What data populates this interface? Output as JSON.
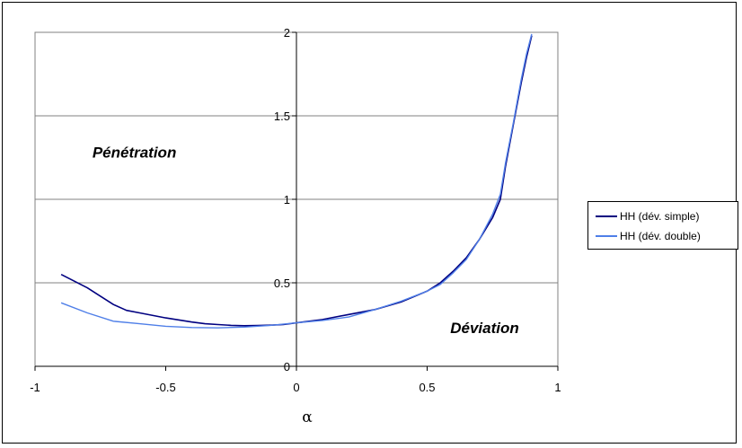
{
  "chart_data": {
    "type": "line",
    "xlabel": "α",
    "ylabel": "",
    "xlim": [
      -1,
      1
    ],
    "ylim": [
      0,
      2
    ],
    "xticks": [
      -1,
      -0.5,
      0,
      0.5,
      1
    ],
    "xtick_labels": [
      "-1",
      "-0.5",
      "0",
      "0.5",
      "1"
    ],
    "yticks": [
      0,
      0.5,
      1,
      1.5,
      2
    ],
    "ytick_labels": [
      "0",
      "0.5",
      "1",
      "1.5",
      "2"
    ],
    "grid": "horizontal",
    "legend": "right",
    "annotations": [
      {
        "text": "Pénétration",
        "x": -0.62,
        "y": 1.25
      },
      {
        "text": "Déviation",
        "x": 0.72,
        "y": 0.2
      }
    ],
    "series": [
      {
        "name": "HH (dév. simple)",
        "color": "#000080",
        "x": [
          -0.9,
          -0.8,
          -0.75,
          -0.7,
          -0.65,
          -0.6,
          -0.5,
          -0.4,
          -0.35,
          -0.3,
          -0.25,
          -0.2,
          -0.15,
          -0.1,
          -0.05,
          0,
          0.1,
          0.2,
          0.3,
          0.4,
          0.5,
          0.55,
          0.6,
          0.65,
          0.7,
          0.75,
          0.78,
          0.8,
          0.83,
          0.86,
          0.88,
          0.9
        ],
        "y": [
          0.55,
          0.47,
          0.42,
          0.37,
          0.335,
          0.32,
          0.29,
          0.265,
          0.255,
          0.25,
          0.245,
          0.243,
          0.244,
          0.246,
          0.25,
          0.26,
          0.28,
          0.31,
          0.34,
          0.385,
          0.45,
          0.5,
          0.57,
          0.65,
          0.76,
          0.89,
          1.0,
          1.2,
          1.45,
          1.7,
          1.85,
          1.98
        ]
      },
      {
        "name": "HH (dév. double)",
        "color": "#4F7FE8",
        "x": [
          -0.9,
          -0.8,
          -0.7,
          -0.6,
          -0.5,
          -0.4,
          -0.3,
          -0.2,
          -0.1,
          0,
          0.1,
          0.2,
          0.3,
          0.4,
          0.5,
          0.55,
          0.6,
          0.65,
          0.7,
          0.75,
          0.78,
          0.8,
          0.83,
          0.86,
          0.88,
          0.9
        ],
        "y": [
          0.38,
          0.32,
          0.27,
          0.255,
          0.24,
          0.232,
          0.23,
          0.235,
          0.245,
          0.26,
          0.275,
          0.295,
          0.34,
          0.39,
          0.45,
          0.49,
          0.56,
          0.64,
          0.76,
          0.91,
          1.03,
          1.22,
          1.46,
          1.72,
          1.87,
          1.99
        ]
      }
    ]
  }
}
